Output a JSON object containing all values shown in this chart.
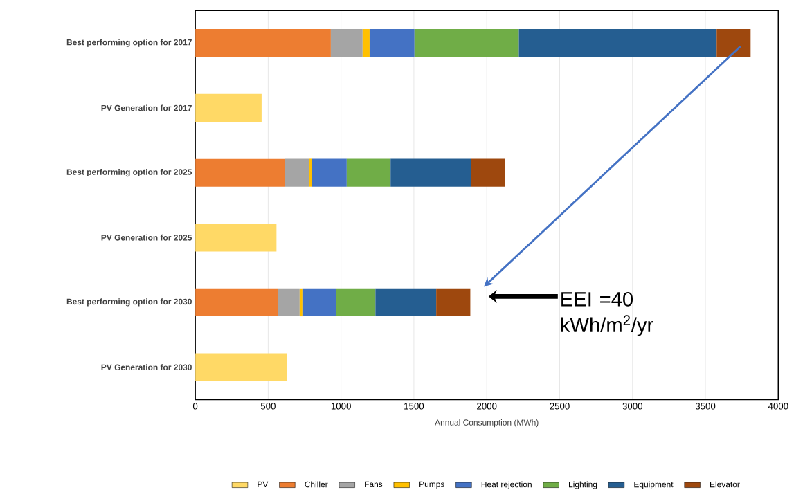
{
  "chart_data": {
    "type": "bar",
    "orientation": "horizontal",
    "stacked": true,
    "xlabel": "Annual Consumption (MWh)",
    "categories": [
      "Best performing option for 2017",
      "PV Generation for 2017",
      "Best performing option for 2025",
      "PV Generation for 2025",
      "Best performing option for 2030",
      "PV Generation for 2030"
    ],
    "series": [
      {
        "name": "PV",
        "color": "#ffd966",
        "values": [
          null,
          455,
          null,
          557,
          null,
          627
        ]
      },
      {
        "name": "Chiller",
        "color": "#ed7d31",
        "values": [
          930,
          null,
          616,
          null,
          568,
          null
        ]
      },
      {
        "name": "Fans",
        "color": "#a5a5a5",
        "values": [
          218,
          null,
          166,
          null,
          148,
          null
        ]
      },
      {
        "name": "Pumps",
        "color": "#ffc000",
        "values": [
          48,
          null,
          19,
          null,
          19,
          null
        ]
      },
      {
        "name": "Heat rejection",
        "color": "#4472c4",
        "values": [
          308,
          null,
          238,
          null,
          229,
          null
        ]
      },
      {
        "name": "Lighting",
        "color": "#70ad47",
        "values": [
          716,
          null,
          301,
          null,
          272,
          null
        ]
      },
      {
        "name": "Equipment",
        "color": "#255e91",
        "values": [
          1357,
          null,
          551,
          null,
          417,
          null
        ]
      },
      {
        "name": "Elevator",
        "color": "#9e480e",
        "values": [
          233,
          null,
          234,
          null,
          234,
          null
        ]
      }
    ],
    "xlim": [
      0,
      4000
    ],
    "xticks": [
      0,
      500,
      1000,
      1500,
      2000,
      2500,
      3000,
      3500,
      4000
    ],
    "grid": "x",
    "legend": "bottom",
    "annotations": [
      "EEI =40 kWh/m$^{2}$/yr"
    ]
  }
}
